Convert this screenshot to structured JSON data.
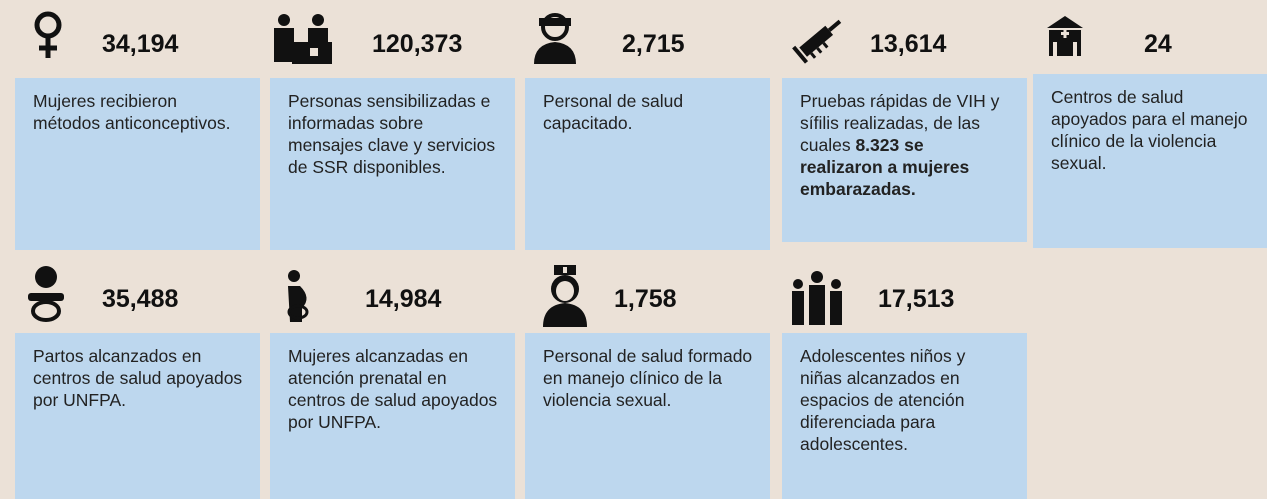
{
  "items": [
    {
      "number": "34,194",
      "description": "Mujeres recibieron métodos anticonceptivos."
    },
    {
      "number": "120,373",
      "description": "Personas sensibilizadas e informadas sobre mensajes clave y servicios de SSR disponibles."
    },
    {
      "number": "2,715",
      "description": "Personal de salud capacitado."
    },
    {
      "number": "13,614",
      "description": "Pruebas rápidas de VIH y sífilis realizadas, de las cuales ",
      "description_bold": "8.323 se realizaron a mujeres embarazadas."
    },
    {
      "number": "24",
      "description": "Centros de salud apoyados para el manejo clínico de la violencia sexual."
    },
    {
      "number": "35,488",
      "description": "Partos alcanzados en centros de salud apoyados por UNFPA."
    },
    {
      "number": "14,984",
      "description": "Mujeres alcanzadas en atención prenatal en centros de salud apoyados por UNFPA."
    },
    {
      "number": "1,758",
      "description": "Personal de salud formado en manejo clínico de la violencia sexual."
    },
    {
      "number": "17,513",
      "description": "Adolescentes niños y niñas alcanzados en espacios de atención diferenciada para adolescentes."
    }
  ]
}
